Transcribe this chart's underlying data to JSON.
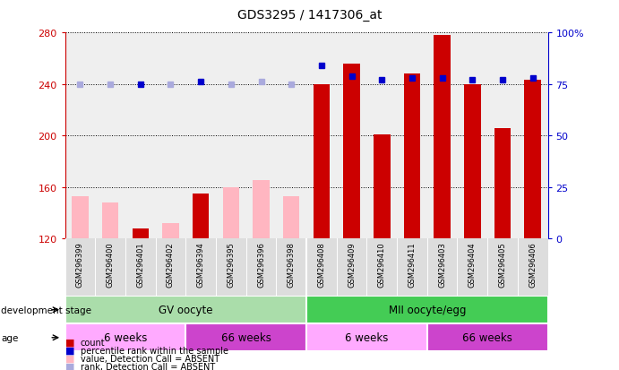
{
  "title": "GDS3295 / 1417306_at",
  "samples": [
    "GSM296399",
    "GSM296400",
    "GSM296401",
    "GSM296402",
    "GSM296394",
    "GSM296395",
    "GSM296396",
    "GSM296398",
    "GSM296408",
    "GSM296409",
    "GSM296410",
    "GSM296411",
    "GSM296403",
    "GSM296404",
    "GSM296405",
    "GSM296406"
  ],
  "counts": [
    153,
    148,
    128,
    132,
    155,
    160,
    165,
    153,
    240,
    256,
    201,
    248,
    278,
    240,
    206,
    243
  ],
  "count_absent": [
    true,
    true,
    false,
    true,
    false,
    true,
    true,
    true,
    false,
    false,
    false,
    false,
    false,
    false,
    false,
    false
  ],
  "percentile_ranks_pct": [
    75,
    75,
    75,
    75,
    76,
    75,
    76,
    75,
    84,
    79,
    77,
    78,
    78,
    77,
    77,
    78
  ],
  "rank_absent": [
    true,
    true,
    false,
    true,
    false,
    true,
    true,
    true,
    false,
    false,
    false,
    false,
    false,
    false,
    false,
    false
  ],
  "ylim_left": [
    120,
    280
  ],
  "ylim_right": [
    0,
    100
  ],
  "yticks_left": [
    120,
    160,
    200,
    240,
    280
  ],
  "yticks_right": [
    0,
    25,
    50,
    75,
    100
  ],
  "dev_stage_groups": [
    {
      "label": "GV oocyte",
      "start": 0,
      "end": 8,
      "color": "#AADDAA"
    },
    {
      "label": "MII oocyte/egg",
      "start": 8,
      "end": 16,
      "color": "#44CC55"
    }
  ],
  "age_groups": [
    {
      "label": "6 weeks",
      "start": 0,
      "end": 4,
      "color": "#FFAAFF"
    },
    {
      "label": "66 weeks",
      "start": 4,
      "end": 8,
      "color": "#CC44CC"
    },
    {
      "label": "6 weeks",
      "start": 8,
      "end": 12,
      "color": "#FFAAFF"
    },
    {
      "label": "66 weeks",
      "start": 12,
      "end": 16,
      "color": "#CC44CC"
    }
  ],
  "bar_color_present": "#CC0000",
  "bar_color_absent": "#FFB6C1",
  "rank_color_present": "#0000CC",
  "rank_color_absent": "#AAAADD",
  "bar_width": 0.55,
  "bg_color": "#FFFFFF",
  "left_axis_color": "#CC0000",
  "right_axis_color": "#0000CC"
}
